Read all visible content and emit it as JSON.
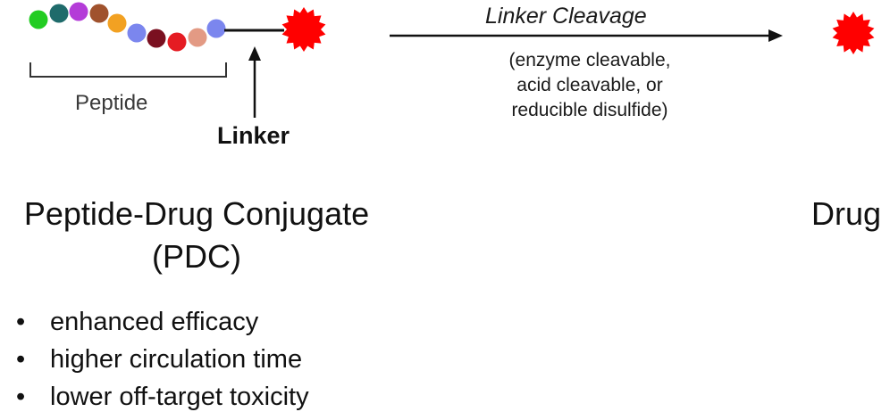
{
  "peptide_label": "Peptide",
  "linker_label": "Linker",
  "cleavage": {
    "title": "Linker Cleavage",
    "note_lines": [
      "(enzyme cleavable,",
      "acid cleavable, or",
      "reducible disulfide)"
    ]
  },
  "conjugate": {
    "title_lines": [
      "Peptide-Drug Conjugate",
      "(PDC)"
    ]
  },
  "drug_label": "Drug",
  "benefits": [
    "enhanced efficacy",
    "higher circulation time",
    "lower off-target toxicity"
  ],
  "bullet_glyph": "•",
  "peptide_bead_colors": [
    "#22cc22",
    "#1f6b6b",
    "#b43cd8",
    "#a0522d",
    "#f2a122",
    "#7b86ee",
    "#7a1020",
    "#e51c23",
    "#e39a84",
    "#7b86ee"
  ],
  "colors": {
    "drug": "#ff0000",
    "ink": "#111111"
  }
}
